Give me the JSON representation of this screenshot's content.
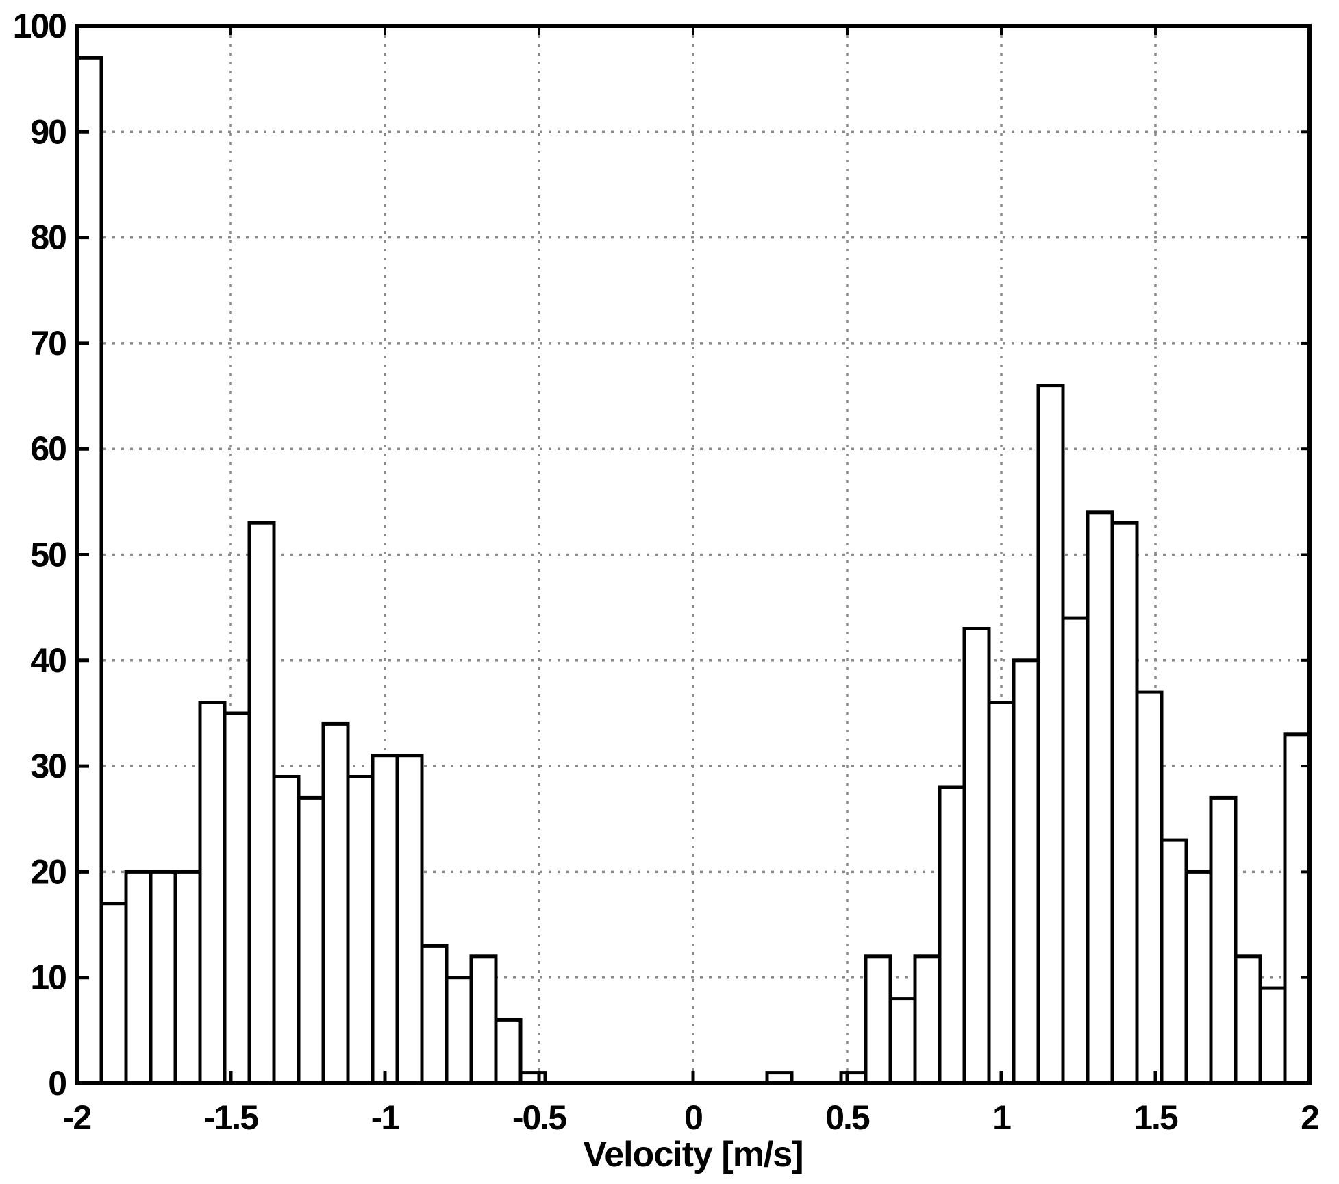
{
  "chart_data": {
    "type": "bar",
    "subtype": "histogram",
    "title": "",
    "xlabel": "Velocity [m/s]",
    "ylabel": "",
    "xlim": [
      -2,
      2
    ],
    "ylim": [
      0,
      100
    ],
    "grid": true,
    "legend_position": "none",
    "x_tick_values": [
      -2,
      -1.5,
      -1,
      -0.5,
      0,
      0.5,
      1,
      1.5,
      2
    ],
    "x_tick_labels": [
      "-2",
      "-1.5",
      "-1",
      "-0.5",
      "0",
      "0.5",
      "1",
      "1.5",
      "2"
    ],
    "y_tick_values": [
      0,
      10,
      20,
      30,
      40,
      50,
      60,
      70,
      80,
      90,
      100
    ],
    "y_tick_labels": [
      "0",
      "10",
      "20",
      "30",
      "40",
      "50",
      "60",
      "70",
      "80",
      "90",
      "100"
    ],
    "bin_start": -2,
    "bin_width": 0.08,
    "n_bins": 50,
    "values": [
      97,
      17,
      20,
      20,
      20,
      36,
      35,
      53,
      29,
      27,
      34,
      29,
      31,
      31,
      13,
      10,
      12,
      6,
      1,
      0,
      0,
      0,
      0,
      0,
      0,
      0,
      0,
      0,
      1,
      0,
      0,
      1,
      12,
      8,
      12,
      28,
      43,
      36,
      40,
      66,
      44,
      54,
      53,
      37,
      23,
      20,
      27,
      12,
      9,
      33
    ]
  },
  "style": {
    "background": "#ffffff",
    "bar_fill": "#ffffff",
    "bar_stroke": "#000000",
    "axis_color": "#000000",
    "grid_color": "#8a8a8a",
    "text_color": "#000000"
  }
}
